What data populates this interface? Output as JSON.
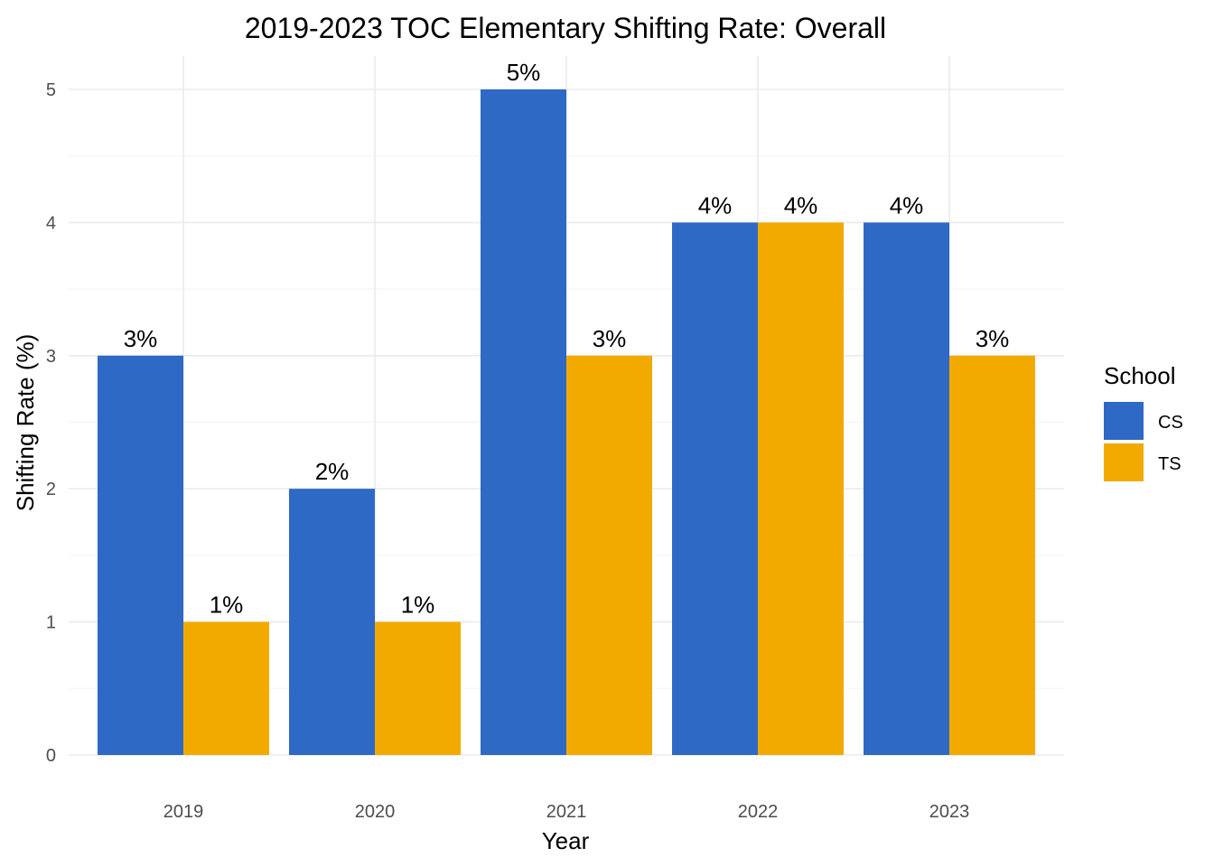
{
  "chart_data": {
    "type": "bar",
    "title": "2019-2023 TOC Elementary Shifting Rate: Overall",
    "xlabel": "Year",
    "ylabel": "Shifting Rate (%)",
    "categories": [
      "2019",
      "2020",
      "2021",
      "2022",
      "2023"
    ],
    "series": [
      {
        "name": "CS",
        "color": "#2E69C5",
        "values": [
          3,
          2,
          5,
          4,
          4
        ],
        "labels": [
          "3%",
          "2%",
          "5%",
          "4%",
          "4%"
        ]
      },
      {
        "name": "TS",
        "color": "#F2AA00",
        "values": [
          1,
          1,
          3,
          4,
          3
        ],
        "labels": [
          "1%",
          "1%",
          "3%",
          "4%",
          "3%"
        ]
      }
    ],
    "ylim": [
      0,
      5
    ],
    "yticks": [
      "0",
      "1",
      "2",
      "3",
      "4",
      "5"
    ],
    "grid": true,
    "legend": {
      "title": "School",
      "position": "right"
    }
  }
}
